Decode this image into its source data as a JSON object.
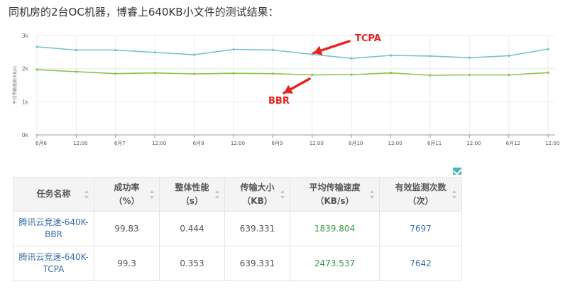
{
  "intro_text": "同机房的2台OC机器，博睿上640KB小文件的测试结果：",
  "chart_data": {
    "type": "line",
    "ylabel": "平均传输速度(KB/s)",
    "y_ticks": [
      "0k",
      "1k",
      "2k",
      "3k"
    ],
    "ylim": [
      0,
      3000
    ],
    "x_ticks": [
      "6月6",
      "12:00",
      "6月7",
      "12:00",
      "6月8",
      "12:00",
      "6月9",
      "12:00",
      "6月10",
      "12:00",
      "6月11",
      "12:00",
      "6月12",
      "12:00"
    ],
    "grid": true,
    "series": [
      {
        "name": "TCPA",
        "color": "#77c3c6",
        "values": [
          2660,
          2560,
          2560,
          2490,
          2420,
          2580,
          2560,
          2430,
          2310,
          2400,
          2380,
          2330,
          2390,
          2590
        ]
      },
      {
        "name": "BBR",
        "color": "#8bc34a",
        "values": [
          1970,
          1910,
          1850,
          1870,
          1840,
          1860,
          1850,
          1810,
          1820,
          1870,
          1800,
          1810,
          1810,
          1880
        ]
      }
    ],
    "annotations": [
      {
        "label": "TCPA",
        "color": "#e8231f",
        "points_to_index": 7,
        "series": "TCPA"
      },
      {
        "label": "BBR",
        "color": "#e8231f",
        "points_to_index": 7,
        "series": "BBR"
      }
    ]
  },
  "table": {
    "headers": [
      [
        "任务名称"
      ],
      [
        "成功率",
        "（%）"
      ],
      [
        "整体性能",
        "（s）"
      ],
      [
        "传输大小",
        "（KB）"
      ],
      [
        "平均传输速度",
        "（KB/s）"
      ],
      [
        "有效监测次数",
        "（次）"
      ]
    ],
    "rows": [
      {
        "name_line1": "腾讯云竞速-640K-",
        "name_line2": "BBR",
        "success": "99.83",
        "perf": "0.444",
        "size": "639.331",
        "speed": "1839.804",
        "count": "7697"
      },
      {
        "name_line1": "腾讯云竞速-640K-",
        "name_line2": "TCPA",
        "success": "99.3",
        "perf": "0.353",
        "size": "639.331",
        "speed": "2473.537",
        "count": "7642"
      }
    ]
  }
}
